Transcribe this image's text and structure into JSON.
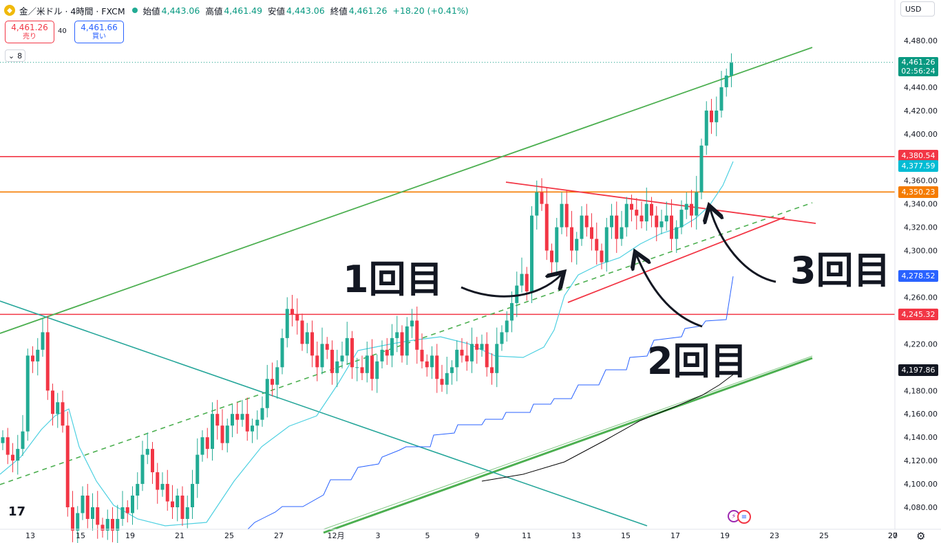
{
  "header": {
    "title": "金／米ドル · 4時間 · FXCM",
    "open_label": "始値",
    "open": "4,443.06",
    "high_label": "高値",
    "high": "4,461.49",
    "low_label": "安値",
    "low": "4,443.06",
    "close_label": "終値",
    "close": "4,461.26",
    "change": "+18.20 (+0.41%)"
  },
  "trade": {
    "sell_price": "4,461.26",
    "sell_label": "売り",
    "spread": "40",
    "buy_price": "4,461.66",
    "buy_label": "買い"
  },
  "indicator_toggle": {
    "count": "8"
  },
  "currency": "USD",
  "axis_price_labels": [
    "4,480.00",
    "4,440.00",
    "4,420.00",
    "4,400.00",
    "4,360.00",
    "4,340.00",
    "4,320.00",
    "4,300.00",
    "4,260.00",
    "4,220.00",
    "4,180.00",
    "4,160.00",
    "4,140.00",
    "4,120.00",
    "4,100.00",
    "4,080.00"
  ],
  "axis_time_labels": [
    "13",
    "15",
    "19",
    "21",
    "25",
    "27",
    "12月",
    "3",
    "5",
    "9",
    "11",
    "13",
    "15",
    "17",
    "19",
    "23",
    "25",
    "27",
    "20"
  ],
  "price_tags": [
    {
      "price": "4,461.26",
      "time": "02:56:24",
      "color": "#089981"
    },
    {
      "price": "4,380.54",
      "color": "#f23645"
    },
    {
      "price": "4,377.59",
      "color": "#00bcd4"
    },
    {
      "price": "4,350.23",
      "color": "#f57c00"
    },
    {
      "price": "4,278.52",
      "color": "#2962ff"
    },
    {
      "price": "4,245.32",
      "color": "#f23645"
    },
    {
      "price": "4,197.86",
      "color": "#131722"
    }
  ],
  "annotations": {
    "first": "1回目",
    "second": "2回目",
    "third": "3回目"
  },
  "colors": {
    "up": "#22ab94",
    "down": "#f23645",
    "channel": "#4caf50",
    "triangle": "#f23645",
    "h_red": "#f23645",
    "h_orange": "#f57c00",
    "ma_fast": "#4dd0e1",
    "ma_slow": "#000000",
    "step": "#2962ff",
    "desc_line": "#26a69a"
  },
  "chart_data": {
    "type": "candlestick",
    "instrument": "金／米ドル",
    "timeframe": "4時間",
    "source": "FXCM",
    "ylim": [
      4070,
      4495
    ],
    "x_tick_labels": [
      "13",
      "15",
      "19",
      "21",
      "25",
      "27",
      "12月",
      "3",
      "5",
      "9",
      "11",
      "13",
      "15",
      "17",
      "19",
      "23",
      "25",
      "27",
      "20"
    ],
    "horizontal_levels": [
      4380.54,
      4350.23,
      4245.32
    ],
    "last_price": 4461.26,
    "ohlc_latest": {
      "open": 4443.06,
      "high": 4461.49,
      "low": 4443.06,
      "close": 4461.26
    }
  }
}
